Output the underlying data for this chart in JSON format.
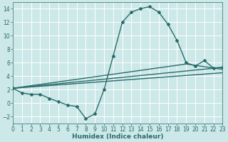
{
  "xlabel": "Humidex (Indice chaleur)",
  "bg_color": "#cce8e8",
  "grid_color": "#ffffff",
  "line_color": "#2a6b6b",
  "main_line": {
    "x": [
      0,
      1,
      2,
      3,
      4,
      5,
      6,
      7,
      8,
      9,
      10,
      11,
      12,
      13,
      14,
      15,
      16,
      17,
      18,
      19,
      20,
      21,
      22,
      23
    ],
    "y": [
      2.2,
      1.5,
      1.3,
      1.3,
      0.7,
      0.2,
      -0.3,
      -0.5,
      -2.3,
      -1.6,
      2.0,
      7.0,
      12.0,
      13.5,
      14.0,
      14.3,
      13.5,
      11.7,
      9.3,
      6.0,
      5.5,
      6.3,
      5.2,
      5.3
    ],
    "marker": "D",
    "markersize": 2.0,
    "linewidth": 1.0
  },
  "straight_lines": [
    {
      "x": [
        0,
        23
      ],
      "y": [
        2.2,
        5.3
      ],
      "linewidth": 1.0
    },
    {
      "x": [
        0,
        23
      ],
      "y": [
        2.2,
        4.5
      ],
      "linewidth": 1.0
    },
    {
      "x": [
        0,
        19,
        23
      ],
      "y": [
        2.2,
        5.8,
        5.0
      ],
      "linewidth": 1.0
    }
  ],
  "xlim": [
    0,
    23
  ],
  "ylim": [
    -3,
    15
  ],
  "xticks": [
    0,
    1,
    2,
    3,
    4,
    5,
    6,
    7,
    8,
    9,
    10,
    11,
    12,
    13,
    14,
    15,
    16,
    17,
    18,
    19,
    20,
    21,
    22,
    23
  ],
  "yticks": [
    -2,
    0,
    2,
    4,
    6,
    8,
    10,
    12,
    14
  ],
  "tick_fontsize": 5.5,
  "xlabel_fontsize": 6.5
}
